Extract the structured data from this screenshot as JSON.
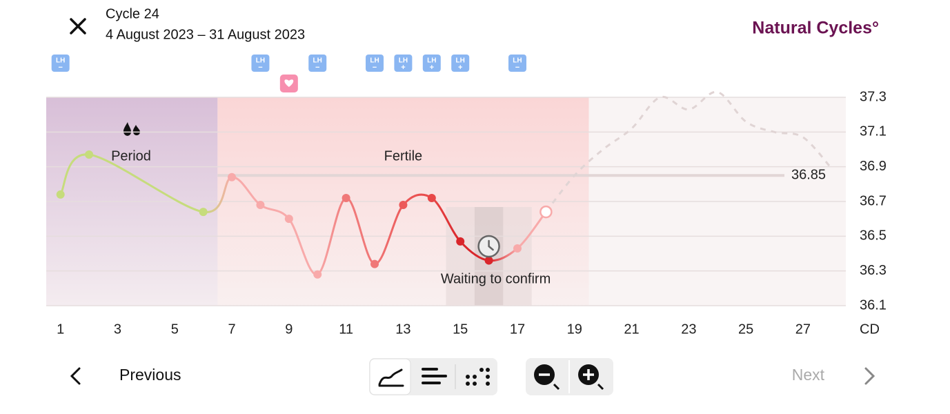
{
  "header": {
    "cycle": "Cycle 24",
    "dates": "4 August 2023 – 31 August 2023",
    "logo": "Natural Cycles°"
  },
  "chart_data": {
    "type": "line",
    "x": [
      1,
      2,
      6,
      7,
      8,
      9,
      10,
      11,
      12,
      13,
      14,
      15,
      16,
      17,
      18
    ],
    "values": [
      36.74,
      36.97,
      36.64,
      36.84,
      36.68,
      36.6,
      36.28,
      36.72,
      36.34,
      36.68,
      36.72,
      36.47,
      36.36,
      36.43,
      36.64
    ],
    "point_colors": [
      "#c6dc7c",
      "#c6dc7c",
      "#c6dc7c",
      "#f8aaaa",
      "#f8aaaa",
      "#f8aaaa",
      "#f8aaaa",
      "#f07878",
      "#f07878",
      "#ec5a5a",
      "#e84848",
      "#d9262b",
      "#d9262b",
      "#f8aaaa",
      "#f8aaaa"
    ],
    "forecast_x": [
      19,
      20,
      21,
      22,
      23,
      24,
      25,
      26,
      27,
      28
    ],
    "forecast_values": [
      36.85,
      37.0,
      37.12,
      37.3,
      37.23,
      37.33,
      37.16,
      37.1,
      37.07,
      36.89
    ],
    "forecast_color": "#e0d4d4",
    "xlim": [
      0.5,
      28.5
    ],
    "xticks": [
      1,
      3,
      5,
      7,
      9,
      11,
      13,
      15,
      17,
      19,
      21,
      23,
      25,
      27
    ],
    "x_unit": "CD",
    "ylim": [
      36.1,
      37.3
    ],
    "yticks": [
      36.1,
      36.3,
      36.5,
      36.7,
      36.9,
      37.1,
      37.3
    ],
    "grid": true,
    "threshold": 36.85,
    "phases": [
      {
        "label": "Period",
        "start": 0.5,
        "end": 6.5,
        "color": "#d8bfd8"
      },
      {
        "label": "Fertile",
        "start": 6.5,
        "end": 19.5,
        "color": "#fad6d6"
      }
    ],
    "waiting": {
      "label": "Waiting to confirm",
      "start": 14.5,
      "end": 17.5
    },
    "lh_tests": [
      {
        "day": 1,
        "label": "LH",
        "result": "−"
      },
      {
        "day": 8,
        "label": "LH",
        "result": "−"
      },
      {
        "day": 10,
        "label": "LH",
        "result": "−"
      },
      {
        "day": 12,
        "label": "LH",
        "result": "−"
      },
      {
        "day": 13,
        "label": "LH",
        "result": "+"
      },
      {
        "day": 14,
        "label": "LH",
        "result": "+"
      },
      {
        "day": 15,
        "label": "LH",
        "result": "+"
      },
      {
        "day": 17,
        "label": "LH",
        "result": "−"
      }
    ],
    "intercourse_days": [
      9
    ]
  },
  "footer": {
    "previous": "Previous",
    "next": "Next"
  }
}
